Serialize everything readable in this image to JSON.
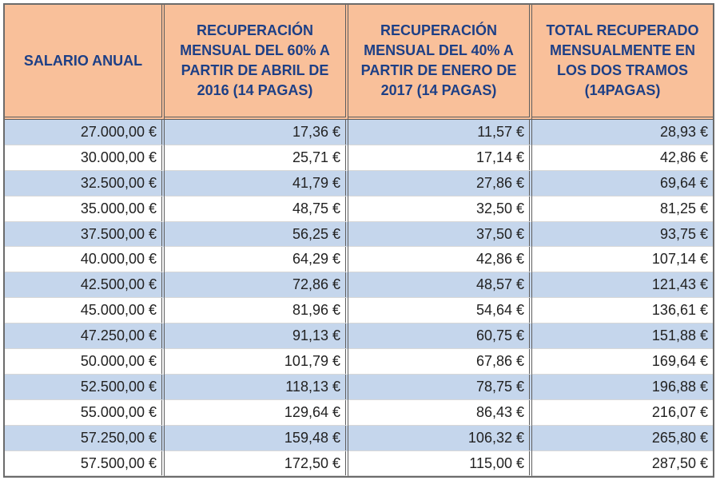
{
  "table": {
    "headers": [
      "SALARIO ANUAL",
      "RECUPERACIÓN MENSUAL DEL 60% A PARTIR DE ABRIL DE 2016 (14 PAGAS)",
      "RECUPERACIÓN MENSUAL DEL 40% A PARTIR DE ENERO DE 2017 (14 PAGAS)",
      "TOTAL RECUPERADO MENSUALMENTE EN LOS DOS TRAMOS (14PAGAS)"
    ],
    "rows": [
      [
        "27.000,00 €",
        "17,36 €",
        "11,57 €",
        "28,93 €"
      ],
      [
        "30.000,00 €",
        "25,71 €",
        "17,14 €",
        "42,86 €"
      ],
      [
        "32.500,00 €",
        "41,79 €",
        "27,86 €",
        "69,64 €"
      ],
      [
        "35.000,00 €",
        "48,75 €",
        "32,50 €",
        "81,25 €"
      ],
      [
        "37.500,00 €",
        "56,25 €",
        "37,50 €",
        "93,75 €"
      ],
      [
        "40.000,00 €",
        "64,29 €",
        "42,86 €",
        "107,14 €"
      ],
      [
        "42.500,00 €",
        "72,86 €",
        "48,57 €",
        "121,43 €"
      ],
      [
        "45.000,00 €",
        "81,96 €",
        "54,64 €",
        "136,61 €"
      ],
      [
        "47.250,00 €",
        "91,13 €",
        "60,75 €",
        "151,88 €"
      ],
      [
        "50.000,00 €",
        "101,79 €",
        "67,86 €",
        "169,64 €"
      ],
      [
        "52.500,00 €",
        "118,13 €",
        "78,75 €",
        "196,88 €"
      ],
      [
        "55.000,00 €",
        "129,64 €",
        "86,43 €",
        "216,07 €"
      ],
      [
        "57.250,00 €",
        "159,48 €",
        "106,32 €",
        "265,80 €"
      ],
      [
        "57.500,00 €",
        "172,50 €",
        "115,00 €",
        "287,50 €"
      ]
    ]
  },
  "colors": {
    "header_bg": "#f9c09a",
    "header_text": "#1d3f86",
    "band_row": "#c5d6ec",
    "plain_row": "#ffffff"
  }
}
